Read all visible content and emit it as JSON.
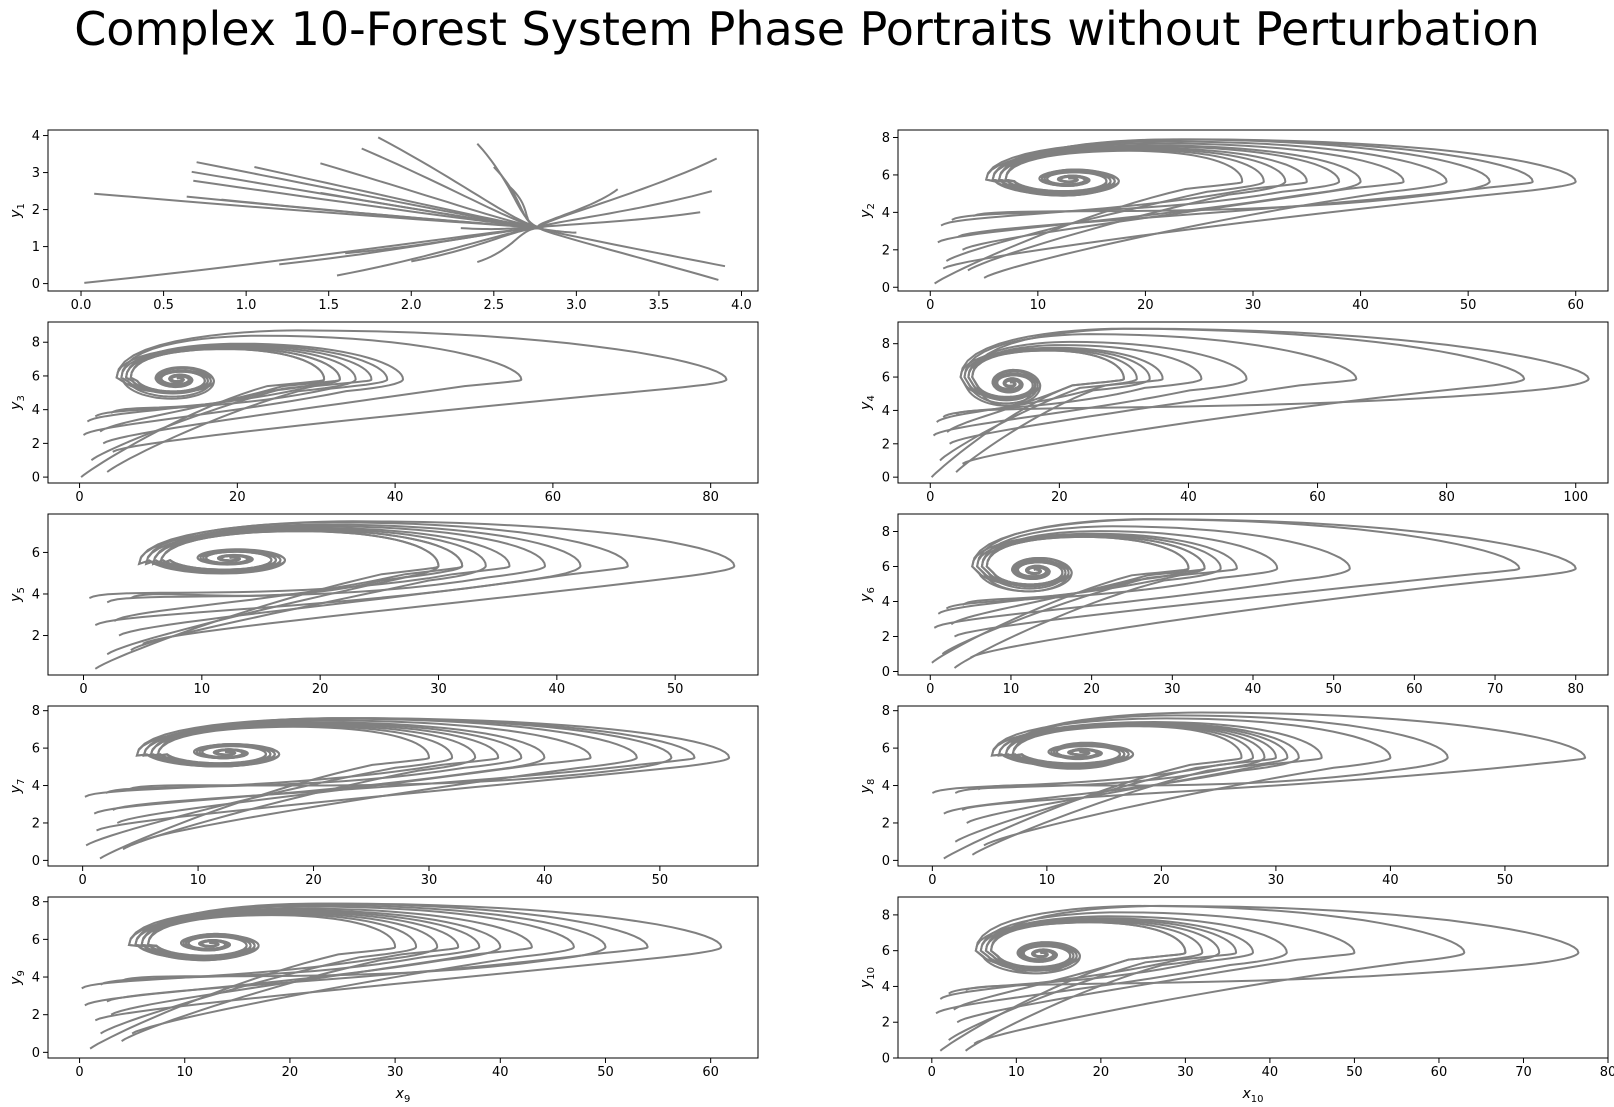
{
  "figure": {
    "title": "Complex 10-Forest System Phase Portraits without Perturbation",
    "line_color": "#808080"
  },
  "chart_data": [
    {
      "type": "line",
      "panel": 1,
      "xlabel": "",
      "ylabel": "y",
      "ylabel_sub": "1",
      "xlim": [
        -0.2,
        4.1
      ],
      "ylim": [
        -0.2,
        4.15
      ],
      "xticks": [
        "0.0",
        "0.5",
        "1.0",
        "1.5",
        "2.0",
        "2.5",
        "3.0",
        "3.5",
        "4.0"
      ],
      "yticks": [
        "0",
        "1",
        "2",
        "3",
        "4"
      ],
      "pattern": "converge",
      "attractor": [
        2.8,
        1.5
      ],
      "starts": [
        [
          0.08,
          2.43
        ],
        [
          0.64,
          2.35
        ],
        [
          0.7,
          3.28
        ],
        [
          0.67,
          3.02
        ],
        [
          0.68,
          2.78
        ],
        [
          0.85,
          2.27
        ],
        [
          1.05,
          3.15
        ],
        [
          1.45,
          3.25
        ],
        [
          1.45,
          2.45
        ],
        [
          1.6,
          0.82
        ],
        [
          2.0,
          0.6
        ],
        [
          2.4,
          0.58
        ],
        [
          3.9,
          0.47
        ],
        [
          3.86,
          0.1
        ],
        [
          1.55,
          0.22
        ],
        [
          1.2,
          0.52
        ],
        [
          0.02,
          0.02
        ],
        [
          1.7,
          3.65
        ],
        [
          1.8,
          3.95
        ],
        [
          2.4,
          3.78
        ],
        [
          2.5,
          3.15
        ],
        [
          3.25,
          2.55
        ],
        [
          3.85,
          3.38
        ],
        [
          3.82,
          2.5
        ],
        [
          3.75,
          1.93
        ],
        [
          3.0,
          1.38
        ],
        [
          2.3,
          1.5
        ],
        [
          2.6,
          2.6
        ]
      ]
    },
    {
      "type": "line",
      "panel": 2,
      "xlabel": "",
      "ylabel": "y",
      "ylabel_sub": "2",
      "xlim": [
        -3,
        63
      ],
      "ylim": [
        -0.2,
        8.4
      ],
      "xticks": [
        "0",
        "10",
        "20",
        "30",
        "40",
        "50",
        "60"
      ],
      "yticks": [
        "0",
        "2",
        "4",
        "6",
        "8"
      ],
      "pattern": "spiral",
      "center": [
        12.5,
        5.75
      ],
      "top": 7.9,
      "nose_y": 5.65,
      "reach": [
        29,
        31,
        33,
        35,
        38,
        40,
        44,
        48,
        52,
        56,
        60
      ],
      "starts": [
        [
          0.4,
          0.2
        ],
        [
          1.5,
          1.4
        ],
        [
          3.5,
          0.9
        ],
        [
          1.0,
          3.3
        ],
        [
          2.0,
          3.6
        ],
        [
          0.7,
          2.4
        ],
        [
          3.0,
          2.0
        ],
        [
          5.0,
          0.5
        ],
        [
          4.0,
          3.8
        ],
        [
          2.6,
          2.7
        ],
        [
          1.2,
          1.0
        ]
      ]
    },
    {
      "type": "line",
      "panel": 3,
      "xlabel": "",
      "ylabel": "y",
      "ylabel_sub": "3",
      "xlim": [
        -4,
        86
      ],
      "ylim": [
        -0.35,
        9.2
      ],
      "xticks": [
        "0",
        "20",
        "40",
        "60",
        "80"
      ],
      "yticks": [
        "0",
        "2",
        "4",
        "6",
        "8"
      ],
      "pattern": "spiral",
      "center": [
        12,
        5.8
      ],
      "top": 8.7,
      "nose_y": 5.8,
      "reach": [
        31,
        33,
        35,
        37,
        39,
        41,
        56,
        82
      ],
      "starts": [
        [
          0.2,
          0.0
        ],
        [
          1.5,
          1.0
        ],
        [
          3.5,
          0.3
        ],
        [
          1.0,
          3.3
        ],
        [
          2.0,
          3.6
        ],
        [
          0.5,
          2.5
        ],
        [
          3.0,
          2.0
        ],
        [
          4.2,
          1.5
        ],
        [
          4.0,
          3.8
        ],
        [
          2.6,
          2.7
        ]
      ]
    },
    {
      "type": "line",
      "panel": 4,
      "xlabel": "",
      "ylabel": "y",
      "ylabel_sub": "4",
      "xlim": [
        -5,
        105
      ],
      "ylim": [
        -0.35,
        9.3
      ],
      "xticks": [
        "0",
        "20",
        "40",
        "60",
        "80",
        "100"
      ],
      "yticks": [
        "0",
        "2",
        "4",
        "6",
        "8"
      ],
      "pattern": "spiral",
      "center": [
        12,
        5.6
      ],
      "top": 8.9,
      "nose_y": 5.9,
      "reach": [
        30,
        32,
        34,
        36,
        42,
        49,
        66,
        92,
        102
      ],
      "starts": [
        [
          0.2,
          0.0
        ],
        [
          1.5,
          1.0
        ],
        [
          4.0,
          0.3
        ],
        [
          1.0,
          3.3
        ],
        [
          2.0,
          3.6
        ],
        [
          0.5,
          2.5
        ],
        [
          3.0,
          2.0
        ],
        [
          5.0,
          0.8
        ],
        [
          4.0,
          3.8
        ],
        [
          2.6,
          2.7
        ]
      ]
    },
    {
      "type": "line",
      "panel": 5,
      "xlabel": "",
      "ylabel": "y",
      "ylabel_sub": "5",
      "xlim": [
        -3,
        57
      ],
      "ylim": [
        0.1,
        7.85
      ],
      "xticks": [
        "0",
        "10",
        "20",
        "30",
        "40",
        "50"
      ],
      "yticks": [
        "2",
        "4",
        "6"
      ],
      "pattern": "spiral",
      "center": [
        12,
        5.7
      ],
      "top": 7.5,
      "nose_y": 5.35,
      "reach": [
        30,
        32,
        34,
        36,
        39,
        42,
        46,
        55
      ],
      "starts": [
        [
          1.0,
          0.4
        ],
        [
          2.0,
          1.1
        ],
        [
          4.0,
          1.3
        ],
        [
          0.5,
          3.8
        ],
        [
          2.0,
          3.6
        ],
        [
          1.0,
          2.5
        ],
        [
          3.0,
          2.0
        ],
        [
          5.0,
          1.6
        ],
        [
          4.0,
          3.8
        ],
        [
          2.6,
          2.7
        ]
      ]
    },
    {
      "type": "line",
      "panel": 6,
      "xlabel": "",
      "ylabel": "y",
      "ylabel_sub": "6",
      "xlim": [
        -4,
        84
      ],
      "ylim": [
        -0.2,
        9.0
      ],
      "xticks": [
        "0",
        "10",
        "20",
        "30",
        "40",
        "50",
        "60",
        "70",
        "80"
      ],
      "yticks": [
        "0",
        "2",
        "4",
        "6",
        "8"
      ],
      "pattern": "spiral",
      "center": [
        12.5,
        5.75
      ],
      "top": 8.7,
      "nose_y": 5.9,
      "reach": [
        32,
        34,
        36,
        38,
        43,
        52,
        73,
        80
      ],
      "starts": [
        [
          0.2,
          0.5
        ],
        [
          1.5,
          1.0
        ],
        [
          3.0,
          0.2
        ],
        [
          1.0,
          3.3
        ],
        [
          2.0,
          3.6
        ],
        [
          0.5,
          2.5
        ],
        [
          3.0,
          2.0
        ],
        [
          5.0,
          0.8
        ],
        [
          4.0,
          3.8
        ],
        [
          2.6,
          2.7
        ]
      ]
    },
    {
      "type": "line",
      "panel": 7,
      "xlabel": "",
      "ylabel": "y",
      "ylabel_sub": "7",
      "xlim": [
        -3,
        58.5
      ],
      "ylim": [
        -0.3,
        8.25
      ],
      "xticks": [
        "0",
        "10",
        "20",
        "30",
        "40",
        "50"
      ],
      "yticks": [
        "0",
        "2",
        "4",
        "6",
        "8"
      ],
      "pattern": "spiral",
      "center": [
        12,
        5.75
      ],
      "top": 7.6,
      "nose_y": 5.5,
      "reach": [
        30,
        32,
        34,
        36,
        38,
        40,
        44,
        48,
        51,
        53,
        56
      ],
      "starts": [
        [
          1.5,
          0.1
        ],
        [
          0.3,
          0.8
        ],
        [
          3.5,
          0.6
        ],
        [
          0.2,
          3.4
        ],
        [
          2.0,
          3.6
        ],
        [
          1.0,
          2.5
        ],
        [
          3.0,
          2.0
        ],
        [
          5.0,
          1.0
        ],
        [
          4.0,
          3.8
        ],
        [
          2.6,
          2.7
        ],
        [
          1.2,
          1.6
        ]
      ]
    },
    {
      "type": "line",
      "panel": 8,
      "xlabel": "",
      "ylabel": "y",
      "ylabel_sub": "8",
      "xlim": [
        -3,
        59
      ],
      "ylim": [
        -0.3,
        8.25
      ],
      "xticks": [
        "0",
        "10",
        "20",
        "30",
        "40",
        "50"
      ],
      "yticks": [
        "0",
        "2",
        "4",
        "6",
        "8"
      ],
      "pattern": "spiral",
      "center": [
        12.5,
        5.75
      ],
      "top": 7.9,
      "nose_y": 5.5,
      "reach": [
        27,
        28,
        29,
        30,
        31,
        32,
        34,
        40,
        45,
        57
      ],
      "starts": [
        [
          1.0,
          0.1
        ],
        [
          2.0,
          1.0
        ],
        [
          3.5,
          0.3
        ],
        [
          0.0,
          3.6
        ],
        [
          2.0,
          3.6
        ],
        [
          1.0,
          2.5
        ],
        [
          3.0,
          2.0
        ],
        [
          4.5,
          0.8
        ],
        [
          4.0,
          3.8
        ],
        [
          2.6,
          2.7
        ]
      ]
    },
    {
      "type": "line",
      "panel": 9,
      "xlabel": "x",
      "xlabel_sub": "9",
      "ylabel": "y",
      "ylabel_sub": "9",
      "xlim": [
        -3,
        64.5
      ],
      "ylim": [
        -0.3,
        8.25
      ],
      "xticks": [
        "0",
        "10",
        "20",
        "30",
        "40",
        "50",
        "60"
      ],
      "yticks": [
        "0",
        "2",
        "4",
        "6",
        "8"
      ],
      "pattern": "spiral",
      "center": [
        12,
        5.75
      ],
      "top": 7.9,
      "nose_y": 5.6,
      "reach": [
        30,
        32,
        34,
        36,
        38,
        40,
        43,
        47,
        50,
        54,
        61
      ],
      "starts": [
        [
          1.0,
          0.2
        ],
        [
          2.0,
          1.0
        ],
        [
          4.0,
          0.6
        ],
        [
          0.2,
          3.4
        ],
        [
          2.0,
          3.6
        ],
        [
          0.5,
          2.5
        ],
        [
          3.0,
          2.0
        ],
        [
          5.0,
          1.0
        ],
        [
          4.0,
          3.8
        ],
        [
          2.6,
          2.7
        ],
        [
          1.5,
          1.7
        ]
      ]
    },
    {
      "type": "line",
      "panel": 10,
      "xlabel": "x",
      "xlabel_sub": "10",
      "ylabel": "y",
      "ylabel_sub": "10",
      "xlim": [
        -4,
        80
      ],
      "ylim": [
        0,
        9
      ],
      "xticks": [
        "0",
        "10",
        "20",
        "30",
        "40",
        "50",
        "60",
        "70",
        "80"
      ],
      "yticks": [
        "0",
        "2",
        "4",
        "6",
        "8"
      ],
      "pattern": "spiral",
      "center": [
        12.5,
        5.8
      ],
      "top": 8.5,
      "nose_y": 5.9,
      "reach": [
        30,
        32,
        34,
        36,
        38,
        42,
        50,
        63,
        76.5
      ],
      "starts": [
        [
          1.0,
          0.4
        ],
        [
          2.0,
          1.0
        ],
        [
          4.0,
          0.4
        ],
        [
          1.0,
          3.3
        ],
        [
          2.0,
          3.6
        ],
        [
          0.5,
          2.5
        ],
        [
          3.0,
          2.0
        ],
        [
          5.0,
          0.8
        ],
        [
          4.0,
          3.8
        ],
        [
          2.6,
          2.7
        ]
      ]
    }
  ]
}
